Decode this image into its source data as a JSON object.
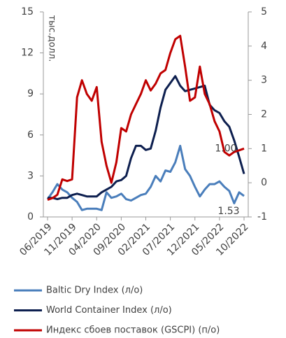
{
  "chart_data": {
    "type": "line",
    "y_label": "тыс.долл.",
    "categories": [
      "06/2019",
      null,
      null,
      null,
      null,
      "11/2019",
      null,
      null,
      null,
      null,
      "04/2020",
      null,
      null,
      null,
      null,
      "09/2020",
      null,
      null,
      null,
      null,
      "02/2021",
      null,
      null,
      null,
      null,
      "07/2021",
      null,
      null,
      null,
      null,
      "12/2021",
      null,
      null,
      null,
      null,
      "05/2022",
      null,
      null,
      null,
      null,
      "10/2022"
    ],
    "ylim": [
      0,
      15
    ],
    "yticks": [
      0,
      3,
      6,
      9,
      12,
      15
    ],
    "y2lim": [
      -1,
      5
    ],
    "y2ticks": [
      -1,
      0,
      1,
      2,
      3,
      4,
      5
    ],
    "legend": "bottom",
    "series": [
      {
        "name": "Baltic Dry Index (л/о)",
        "color": "#4a7ebb",
        "axis": "y",
        "values": [
          1.3,
          1.8,
          2.4,
          2.0,
          1.8,
          1.4,
          1.1,
          0.5,
          0.6,
          0.6,
          0.6,
          0.5,
          1.8,
          1.4,
          1.5,
          1.7,
          1.3,
          1.2,
          1.4,
          1.6,
          1.7,
          2.2,
          3.0,
          2.6,
          3.4,
          3.3,
          4.0,
          5.2,
          3.5,
          3.0,
          2.2,
          1.5,
          2.0,
          2.4,
          2.4,
          2.6,
          2.2,
          1.9,
          1.0,
          1.8,
          1.53
        ],
        "value_labels": [
          null,
          null,
          null,
          null,
          null,
          null,
          null,
          null,
          null,
          null,
          null,
          null,
          null,
          null,
          null,
          null,
          null,
          null,
          null,
          null,
          null,
          null,
          null,
          null,
          null,
          null,
          null,
          null,
          null,
          null,
          null,
          null,
          null,
          null,
          null,
          null,
          null,
          null,
          null,
          null,
          "1.53"
        ]
      },
      {
        "name": "World Container Index (л/о)",
        "color": "#0d1f4f",
        "axis": "y",
        "values": [
          1.4,
          1.4,
          1.3,
          1.4,
          1.4,
          1.6,
          1.7,
          1.6,
          1.5,
          1.5,
          1.5,
          1.8,
          2.0,
          2.2,
          2.6,
          2.7,
          3.0,
          4.3,
          5.2,
          5.2,
          4.9,
          5.0,
          6.3,
          8.0,
          9.3,
          9.8,
          10.3,
          9.6,
          9.2,
          9.3,
          9.4,
          9.5,
          9.6,
          8.2,
          7.8,
          7.6,
          7.0,
          6.6,
          5.6,
          4.4,
          3.15
        ]
      },
      {
        "name": "Индекс сбоев поставок (GSCPI) (п/о)",
        "color": "#c00000",
        "axis": "y2",
        "values": [
          -0.5,
          -0.45,
          -0.35,
          0.1,
          0.05,
          0.1,
          2.5,
          3.0,
          2.6,
          2.4,
          2.8,
          1.2,
          0.5,
          0.0,
          0.6,
          1.6,
          1.5,
          2.0,
          2.3,
          2.6,
          3.0,
          2.7,
          2.9,
          3.2,
          3.3,
          3.8,
          4.2,
          4.3,
          3.4,
          2.4,
          2.5,
          3.4,
          2.6,
          2.3,
          1.8,
          1.5,
          0.9,
          0.8,
          0.9,
          0.95,
          1.0
        ],
        "value_labels": [
          null,
          null,
          null,
          null,
          null,
          null,
          null,
          null,
          null,
          null,
          null,
          null,
          null,
          null,
          null,
          null,
          null,
          null,
          null,
          null,
          null,
          null,
          null,
          null,
          null,
          null,
          null,
          null,
          null,
          null,
          null,
          null,
          null,
          null,
          null,
          null,
          null,
          null,
          null,
          null,
          "1.00"
        ]
      }
    ]
  }
}
